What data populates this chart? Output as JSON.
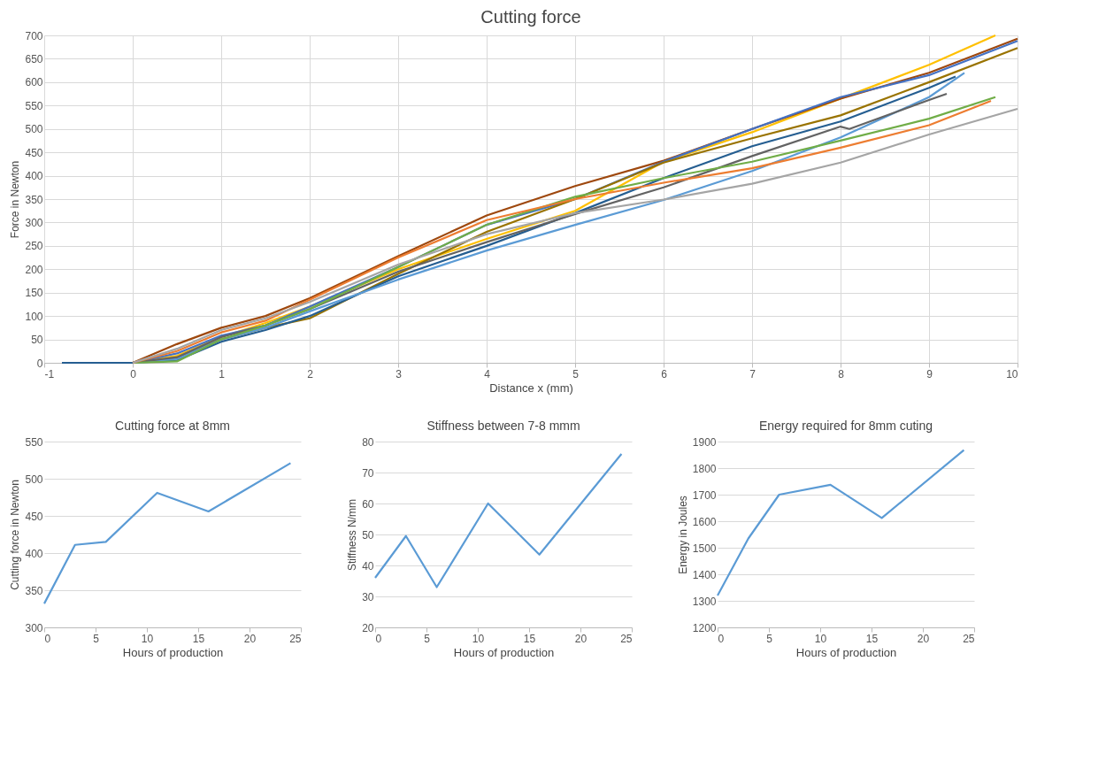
{
  "chart_data": [
    {
      "type": "line",
      "title": "Cutting force",
      "xlabel": "Distance x (mm)",
      "ylabel": "Force in Newton",
      "xlim": [
        -1,
        10
      ],
      "xticks": [
        -1,
        0,
        1,
        2,
        3,
        4,
        5,
        6,
        7,
        8,
        9,
        10
      ],
      "ylim": [
        0,
        700
      ],
      "yticks": [
        0,
        50,
        100,
        150,
        200,
        250,
        300,
        350,
        400,
        450,
        500,
        550,
        600,
        650,
        700
      ],
      "grid": true,
      "legend": false,
      "series": [
        {
          "color": "#ffc000",
          "x": [
            0,
            0.5,
            1,
            1.5,
            2,
            3,
            4,
            5,
            6,
            7,
            8,
            9,
            9.75
          ],
          "values": [
            0,
            15,
            55,
            85,
            120,
            200,
            265,
            325,
            430,
            493,
            565,
            637,
            700
          ]
        },
        {
          "color": "#9e480e",
          "x": [
            -0.8,
            0,
            0.5,
            1,
            1.5,
            2,
            3,
            4,
            5,
            6,
            7,
            8,
            9,
            10
          ],
          "values": [
            0,
            0,
            40,
            75,
            100,
            138,
            228,
            315,
            378,
            432,
            500,
            565,
            620,
            693
          ]
        },
        {
          "color": "#4472c4",
          "x": [
            -0.5,
            0,
            0.5,
            1,
            1.5,
            2,
            3,
            4,
            5,
            6,
            7,
            8,
            9,
            10
          ],
          "values": [
            0,
            0,
            20,
            58,
            80,
            120,
            205,
            295,
            350,
            430,
            500,
            568,
            615,
            688
          ]
        },
        {
          "color": "#997300",
          "x": [
            0,
            0.5,
            1,
            1.5,
            2,
            3,
            4,
            5,
            6,
            7,
            8,
            9,
            10
          ],
          "values": [
            0,
            10,
            50,
            75,
            95,
            190,
            280,
            350,
            428,
            480,
            529,
            600,
            673
          ]
        },
        {
          "color": "#255e91",
          "x": [
            -0.8,
            0,
            0.5,
            1,
            1.5,
            2,
            3,
            4,
            5,
            6,
            7,
            8,
            9,
            9.3
          ],
          "values": [
            0,
            0,
            5,
            45,
            70,
            100,
            185,
            250,
            320,
            395,
            463,
            516,
            588,
            612
          ]
        },
        {
          "color": "#5b9bd5",
          "x": [
            0,
            0.5,
            1,
            1.5,
            2,
            3,
            4,
            5,
            6,
            7,
            8,
            9,
            9.4
          ],
          "values": [
            0,
            8,
            50,
            75,
            110,
            178,
            240,
            295,
            348,
            410,
            482,
            568,
            620
          ]
        },
        {
          "color": "#636363",
          "x": [
            0,
            0.5,
            1,
            1.5,
            2,
            3,
            4,
            5,
            6,
            7,
            8,
            8.1,
            9,
            9.2
          ],
          "values": [
            0,
            12,
            55,
            80,
            115,
            195,
            258,
            318,
            375,
            442,
            505,
            500,
            562,
            575
          ]
        },
        {
          "color": "#70ad47",
          "x": [
            0,
            0.5,
            1,
            1.5,
            2,
            3,
            4,
            5,
            6,
            7,
            8,
            9,
            9.75
          ],
          "values": [
            0,
            3,
            50,
            80,
            115,
            205,
            295,
            355,
            395,
            430,
            475,
            522,
            568
          ]
        },
        {
          "color": "#ed7d31",
          "x": [
            0,
            0.5,
            1,
            1.5,
            2,
            3,
            4,
            5,
            6,
            7,
            8,
            9,
            9.7
          ],
          "values": [
            0,
            25,
            65,
            90,
            135,
            225,
            305,
            350,
            385,
            416,
            460,
            508,
            560
          ]
        },
        {
          "color": "#a5a5a5",
          "x": [
            0,
            0.5,
            1,
            1.5,
            2,
            3,
            4,
            5,
            6,
            7,
            8,
            9,
            10
          ],
          "values": [
            0,
            30,
            70,
            95,
            130,
            210,
            275,
            320,
            349,
            383,
            428,
            488,
            543
          ]
        }
      ]
    },
    {
      "type": "line",
      "title": "Cutting force at 8mm",
      "xlabel": "Hours of production",
      "ylabel": "Cutting force in Newton",
      "xlim": [
        0,
        25
      ],
      "xticks": [
        0,
        5,
        10,
        15,
        20,
        25
      ],
      "ylim": [
        300,
        550
      ],
      "yticks": [
        300,
        350,
        400,
        450,
        500,
        550
      ],
      "grid": "y",
      "legend": false,
      "series": [
        {
          "color": "#5b9bd5",
          "x": [
            0,
            3,
            6,
            11,
            16,
            24
          ],
          "values": [
            332,
            411,
            415,
            481,
            456,
            521
          ]
        }
      ]
    },
    {
      "type": "line",
      "title": "Stiffness between 7-8 mmm",
      "xlabel": "Hours of production",
      "ylabel": "Stiffness N/mm",
      "xlim": [
        0,
        25
      ],
      "xticks": [
        0,
        5,
        10,
        15,
        20,
        25
      ],
      "ylim": [
        20,
        80
      ],
      "yticks": [
        20,
        30,
        40,
        50,
        60,
        70,
        80
      ],
      "grid": "y",
      "legend": false,
      "series": [
        {
          "color": "#5b9bd5",
          "x": [
            0,
            3,
            6,
            11,
            16,
            24
          ],
          "values": [
            36,
            49.5,
            33,
            60,
            43.5,
            76
          ]
        }
      ]
    },
    {
      "type": "line",
      "title": "Energy required for 8mm cuting",
      "xlabel": "Hours of production",
      "ylabel": "Energy  in Joules",
      "xlim": [
        0,
        25
      ],
      "xticks": [
        0,
        5,
        10,
        15,
        20,
        25
      ],
      "ylim": [
        1200,
        1900
      ],
      "yticks": [
        1200,
        1300,
        1400,
        1500,
        1600,
        1700,
        1800,
        1900
      ],
      "grid": "y",
      "legend": false,
      "series": [
        {
          "color": "#5b9bd5",
          "x": [
            0,
            3,
            6,
            11,
            16,
            24
          ],
          "values": [
            1320,
            1535,
            1700,
            1737,
            1612,
            1868
          ]
        }
      ]
    }
  ]
}
